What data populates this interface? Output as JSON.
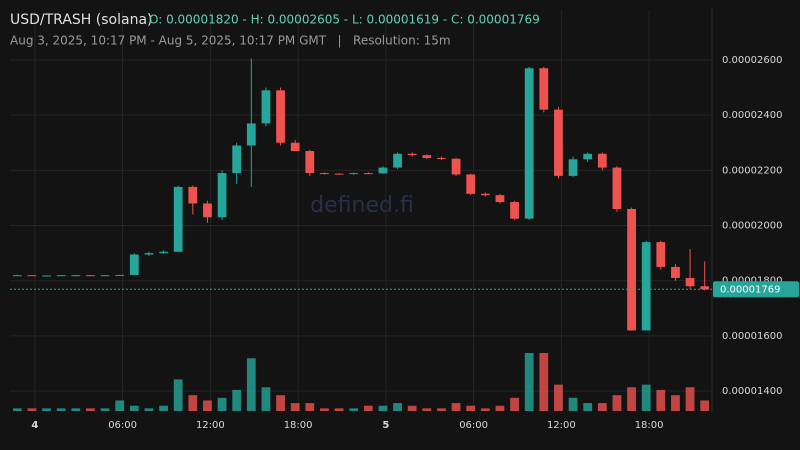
{
  "chart_data": {
    "type": "candlestick",
    "title": "USD/TRASH (solana)",
    "summary": "O: 0.00001820 - H: 0.00002605 - L: 0.00001619 - C: 0.00001769",
    "subtitle": "Aug 3, 2025, 10:17 PM - Aug 5, 2025, 10:17 PM GMT   |   Resolution: 15m",
    "watermark": "defined.fi",
    "up_color": "#26a69a",
    "down_color": "#ef5350",
    "grid": true,
    "ylim": [
      1.328e-05,
      2.781e-05
    ],
    "yticks": [
      {
        "value": 2.6e-05,
        "label": "0.00002600"
      },
      {
        "value": 2.4e-05,
        "label": "0.00002400"
      },
      {
        "value": 2.2e-05,
        "label": "0.00002200"
      },
      {
        "value": 2e-05,
        "label": "0.00002000"
      },
      {
        "value": 1.8e-05,
        "label": "0.00001800"
      },
      {
        "value": 1.6e-05,
        "label": "0.00001600"
      },
      {
        "value": 1.4e-05,
        "label": "0.00001400"
      }
    ],
    "xlim": [
      0,
      48
    ],
    "xticks": [
      {
        "value": 1.7,
        "label": "4"
      },
      {
        "value": 7.7,
        "label": "06:00"
      },
      {
        "value": 13.7,
        "label": "12:00"
      },
      {
        "value": 19.7,
        "label": "18:00"
      },
      {
        "value": 25.7,
        "label": "5"
      },
      {
        "value": 31.7,
        "label": "06:00"
      },
      {
        "value": 37.7,
        "label": "12:00"
      },
      {
        "value": 43.7,
        "label": "18:00"
      }
    ],
    "last_price": {
      "value": 1.769e-05,
      "label": "0.00001769"
    },
    "open": [
      1.82e-05,
      1.82e-05,
      1.819e-05,
      1.819e-05,
      1.82e-05,
      1.82e-05,
      1.819e-05,
      1.82e-05,
      1.821e-05,
      1.895e-05,
      1.9e-05,
      1.905e-05,
      2.14e-05,
      2.08e-05,
      2.03e-05,
      2.19e-05,
      2.29e-05,
      2.37e-05,
      2.49e-05,
      2.3e-05,
      2.27e-05,
      2.19e-05,
      2.188e-05,
      2.187e-05,
      2.19e-05,
      2.189e-05,
      2.21e-05,
      2.26e-05,
      2.255e-05,
      2.245e-05,
      2.242e-05,
      2.185e-05,
      2.115e-05,
      2.11e-05,
      2.085e-05,
      2.025e-05,
      2.57e-05,
      2.42e-05,
      2.18e-05,
      2.24e-05,
      2.26e-05,
      2.21e-05,
      2.06e-05,
      1.62e-05,
      1.94e-05,
      1.85e-05,
      1.81e-05,
      1.78e-05
    ],
    "high": [
      1.822e-05,
      1.821e-05,
      1.82e-05,
      1.82e-05,
      1.821e-05,
      1.821e-05,
      1.82e-05,
      1.822e-05,
      1.9e-05,
      1.905e-05,
      1.91e-05,
      2.145e-05,
      2.145e-05,
      2.09e-05,
      2.2e-05,
      2.3e-05,
      2.605e-05,
      2.5e-05,
      2.5e-05,
      2.31e-05,
      2.275e-05,
      2.192e-05,
      2.19e-05,
      2.192e-05,
      2.193e-05,
      2.215e-05,
      2.265e-05,
      2.265e-05,
      2.258e-05,
      2.25e-05,
      2.245e-05,
      2.188e-05,
      2.12e-05,
      2.115e-05,
      2.09e-05,
      2.575e-05,
      2.575e-05,
      2.43e-05,
      2.25e-05,
      2.265e-05,
      2.265e-05,
      2.215e-05,
      2.065e-05,
      1.945e-05,
      1.945e-05,
      1.86e-05,
      1.915e-05,
      1.87e-05
    ],
    "low": [
      1.818e-05,
      1.819e-05,
      1.818e-05,
      1.818e-05,
      1.819e-05,
      1.819e-05,
      1.818e-05,
      1.819e-05,
      1.82e-05,
      1.89e-05,
      1.898e-05,
      1.905e-05,
      2.04e-05,
      2.01e-05,
      2.02e-05,
      2.15e-05,
      2.14e-05,
      2.36e-05,
      2.29e-05,
      2.27e-05,
      2.18e-05,
      2.185e-05,
      2.185e-05,
      2.184e-05,
      2.186e-05,
      2.188e-05,
      2.205e-05,
      2.25e-05,
      2.24e-05,
      2.238e-05,
      2.18e-05,
      2.11e-05,
      2.105e-05,
      2.08e-05,
      2.02e-05,
      2.02e-05,
      2.41e-05,
      2.17e-05,
      2.175e-05,
      2.23e-05,
      2.2e-05,
      2.05e-05,
      1.619e-05,
      1.625e-05,
      1.84e-05,
      1.8e-05,
      1.77e-05,
      1.765e-05
    ],
    "close": [
      1.82e-05,
      1.819e-05,
      1.819e-05,
      1.82e-05,
      1.82e-05,
      1.819e-05,
      1.82e-05,
      1.821e-05,
      1.895e-05,
      1.9e-05,
      1.905e-05,
      2.14e-05,
      2.08e-05,
      2.03e-05,
      2.19e-05,
      2.29e-05,
      2.37e-05,
      2.49e-05,
      2.3e-05,
      2.27e-05,
      2.19e-05,
      2.188e-05,
      2.187e-05,
      2.19e-05,
      2.189e-05,
      2.21e-05,
      2.26e-05,
      2.255e-05,
      2.245e-05,
      2.242e-05,
      2.185e-05,
      2.115e-05,
      2.11e-05,
      2.085e-05,
      2.025e-05,
      2.57e-05,
      2.42e-05,
      2.18e-05,
      2.24e-05,
      2.26e-05,
      2.21e-05,
      2.06e-05,
      1.62e-05,
      1.94e-05,
      1.85e-05,
      1.81e-05,
      1.78e-05,
      1.769e-05
    ],
    "volume": [
      1,
      1,
      1,
      1,
      1,
      1,
      1,
      4,
      2,
      1,
      2,
      12,
      6,
      4,
      5,
      8,
      20,
      9,
      6,
      3,
      3,
      1,
      1,
      1,
      2,
      2,
      3,
      2,
      1,
      1,
      3,
      2,
      1,
      2,
      5,
      22,
      22,
      10,
      5,
      3,
      3,
      6,
      9,
      10,
      8,
      6,
      9,
      4
    ]
  }
}
